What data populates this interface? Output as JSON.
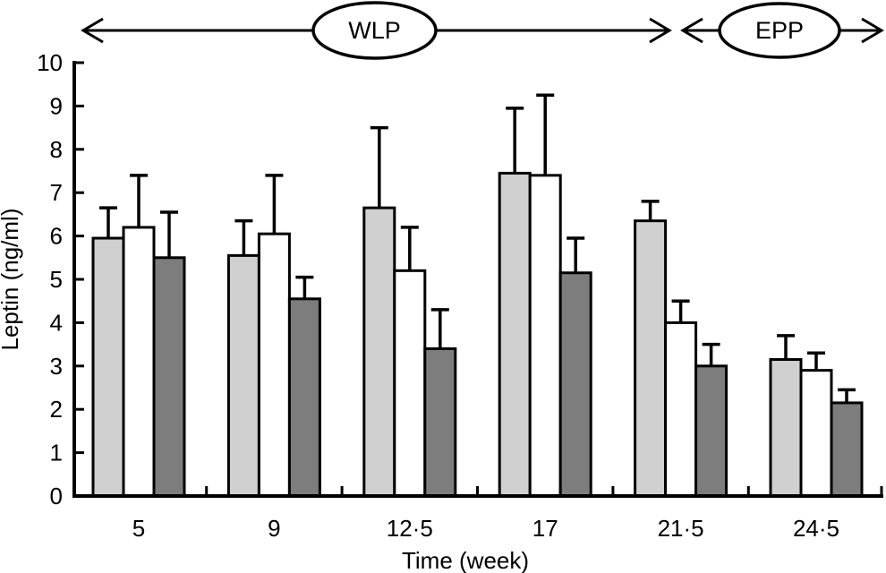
{
  "figure": {
    "description_visible_text_only": "Grouped bar chart of leptin concentration by week with upper error bars",
    "phase_labels": [
      "WLP",
      "EPP"
    ]
  },
  "colors": {
    "light_bar": "#d0d0d0",
    "white_bar": "#ffffff",
    "dark_bar": "#7d7d7d",
    "ink": "#000000",
    "background": "#ffffff"
  },
  "chart_data": {
    "type": "bar",
    "title": "",
    "xlabel": "Time (week)",
    "ylabel": "Leptin (ng/ml)",
    "ylim": [
      0,
      10
    ],
    "yticks": [
      0,
      1,
      2,
      3,
      4,
      5,
      6,
      7,
      8,
      9,
      10
    ],
    "categories": [
      "5",
      "9",
      "12·5",
      "17",
      "21·5",
      "24·5"
    ],
    "series": [
      {
        "name": "light-gray-bars",
        "fill": "#d0d0d0",
        "values": [
          5.95,
          5.55,
          6.65,
          7.45,
          6.35,
          3.15
        ],
        "errors_upper": [
          0.7,
          0.8,
          1.85,
          1.5,
          0.45,
          0.55
        ]
      },
      {
        "name": "white-bars",
        "fill": "#ffffff",
        "values": [
          6.2,
          6.05,
          5.2,
          7.4,
          4.0,
          2.9
        ],
        "errors_upper": [
          1.2,
          1.35,
          1.0,
          1.85,
          0.5,
          0.4
        ]
      },
      {
        "name": "dark-gray-bars",
        "fill": "#7d7d7d",
        "values": [
          5.5,
          4.55,
          3.4,
          5.15,
          3.0,
          2.15
        ],
        "errors_upper": [
          1.05,
          0.5,
          0.9,
          0.8,
          0.5,
          0.3
        ]
      }
    ],
    "error_bars": "upper-only",
    "legend": "none",
    "grid": false,
    "annotations": [
      {
        "label": "WLP",
        "shape": "ellipse-on-double-headed-arrow",
        "covers_categories": [
          "5",
          "9",
          "12·5",
          "17",
          "21·5"
        ]
      },
      {
        "label": "EPP",
        "shape": "ellipse-on-double-headed-arrow",
        "covers_categories": [
          "24·5"
        ]
      }
    ]
  }
}
